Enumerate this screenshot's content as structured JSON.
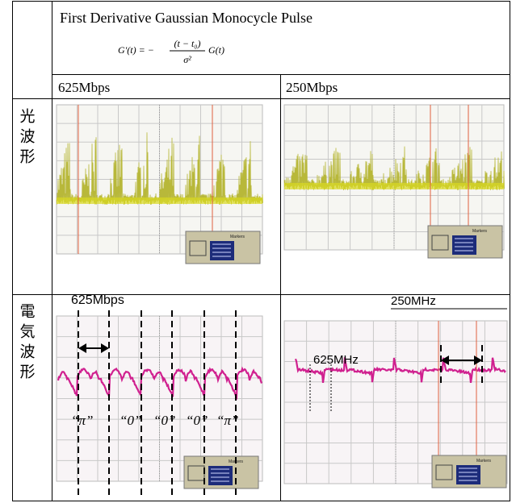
{
  "header": {
    "title": "First Derivative Gaussian Monocycle Pulse",
    "formula": {
      "lhs": "G′(t) = −",
      "numerator": "(t − t₀)",
      "denominator": "σ²",
      "rhs": "G(t)"
    }
  },
  "columns": [
    "625Mbps",
    "250Mbps"
  ],
  "rows": [
    {
      "label": "光波形"
    },
    {
      "label": "電気波形"
    }
  ],
  "panels": {
    "scope_marker_label": "Markers",
    "electrical_625": {
      "rate": "625Mbps",
      "symbols": [
        "“π”",
        "“0”",
        "“0”",
        "“0”",
        "“π”"
      ]
    },
    "electrical_250": {
      "period_label": "250MHz",
      "edge_label": "625MHz"
    }
  }
}
